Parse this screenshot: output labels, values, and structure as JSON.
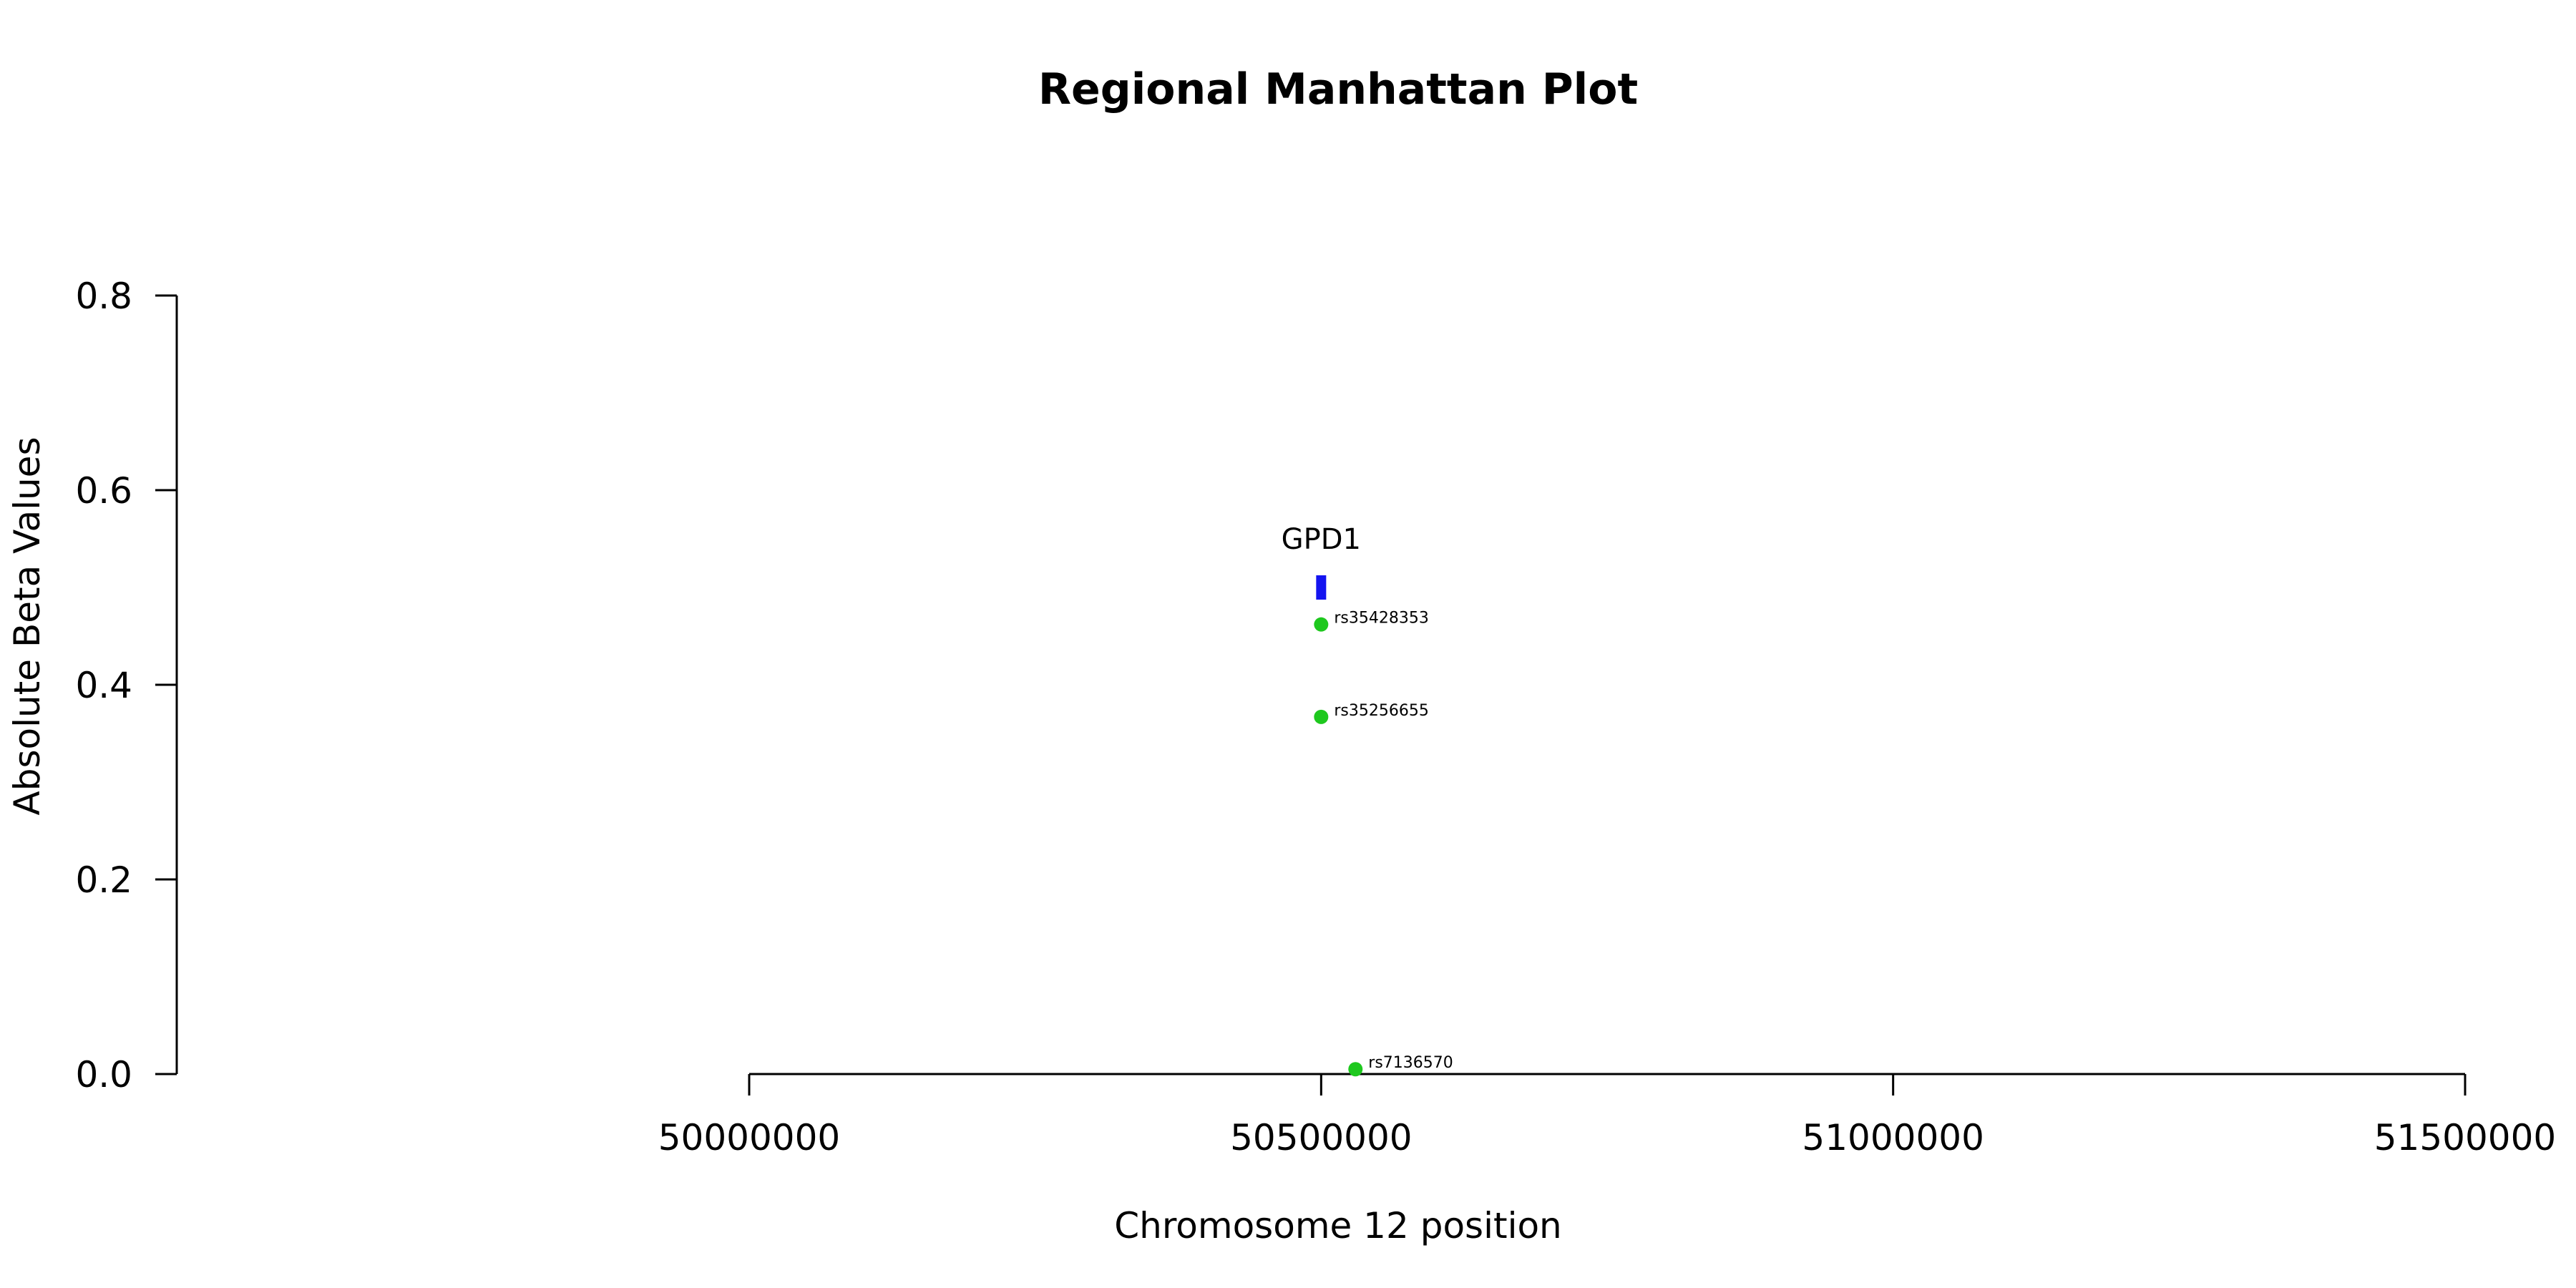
{
  "chart_data": {
    "type": "scatter",
    "title": "Regional Manhattan Plot",
    "xlabel": "Chromosome 12 position",
    "ylabel": "Absolute Beta Values",
    "xlim": [
      50000000,
      51500000
    ],
    "ylim": [
      0,
      0.8
    ],
    "x_ticks": [
      50000000,
      50500000,
      51000000,
      51500000
    ],
    "x_tick_labels": [
      "50000000",
      "50500000",
      "51000000",
      "51500000"
    ],
    "y_ticks": [
      0,
      0.2,
      0.4,
      0.6,
      0.8
    ],
    "y_tick_labels": [
      "0.0",
      "0.2",
      "0.4",
      "0.6",
      "0.8"
    ],
    "grid": false,
    "points": [
      {
        "label": "rs35428353",
        "x": 50500000,
        "y": 0.462
      },
      {
        "label": "rs35256655",
        "x": 50500000,
        "y": 0.367
      },
      {
        "label": "rs7136570",
        "x": 50530000,
        "y": 0.005
      }
    ],
    "genes": [
      {
        "name": "GPD1",
        "x_start": 50496000,
        "x_end": 50504000,
        "y": 0.5
      }
    ],
    "colors": {
      "points": "#1ec81e",
      "gene": "#1414f0",
      "axis": "#000000"
    }
  }
}
